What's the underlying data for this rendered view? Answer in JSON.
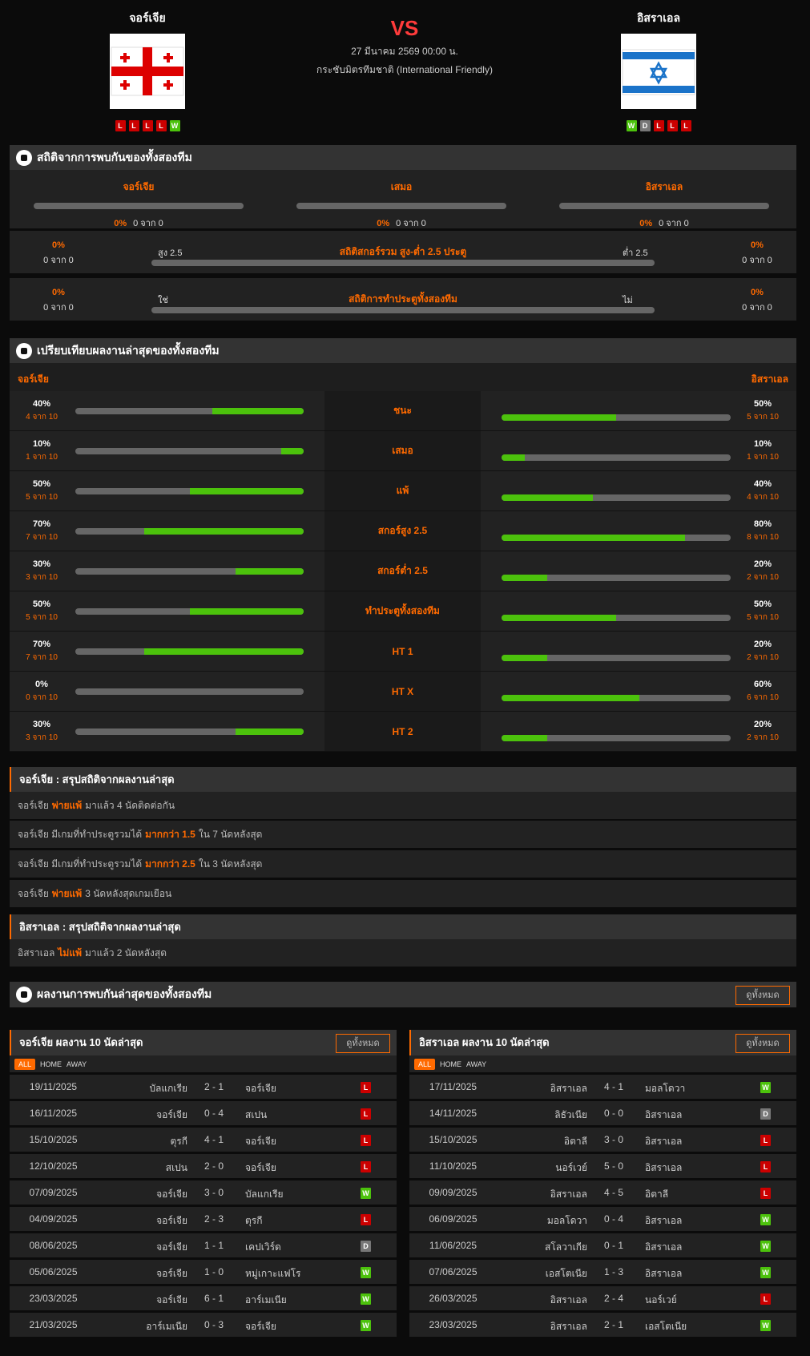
{
  "header": {
    "home": {
      "name": "จอร์เจีย",
      "form": [
        "L",
        "L",
        "L",
        "L",
        "W"
      ]
    },
    "away": {
      "name": "อิสราเอล",
      "form": [
        "W",
        "D",
        "L",
        "L",
        "L"
      ]
    },
    "vs": "VS",
    "date": "27 มีนาคม 2569 00:00 น.",
    "competition": "กระชับมิตรทีมชาติ (International Friendly)"
  },
  "h2h_stats": {
    "title": "สถิติจากการพบกันของทั้งสองทีม",
    "cols": [
      {
        "label": "จอร์เจีย",
        "pct": "0%",
        "count": "0 จาก 0"
      },
      {
        "label": "เสมอ",
        "pct": "0%",
        "count": "0 จาก 0"
      },
      {
        "label": "อิสราเอล",
        "pct": "0%",
        "count": "0 จาก 0"
      }
    ],
    "rows": [
      {
        "title": "สถิติสกอร์รวม สูง-ต่ำ 2.5 ประตู",
        "left_label": "สูง 2.5",
        "right_label": "ต่ำ 2.5",
        "left_pct": "0%",
        "left_count": "0 จาก 0",
        "right_pct": "0%",
        "right_count": "0 จาก 0"
      },
      {
        "title": "สถิติการทำประตูทั้งสองทีม",
        "left_label": "ใช่",
        "right_label": "ไม่",
        "left_pct": "0%",
        "left_count": "0 จาก 0",
        "right_pct": "0%",
        "right_count": "0 จาก 0"
      }
    ]
  },
  "compare": {
    "title": "เปรียบเทียบผลงานล่าสุดของทั้งสองทีม",
    "home": "จอร์เจีย",
    "away": "อิสราเอล",
    "rows": [
      {
        "label": "ชนะ",
        "h": 40,
        "hp": "40%",
        "hc": "4 จาก 10",
        "a": 50,
        "ap": "50%",
        "ac": "5 จาก 10"
      },
      {
        "label": "เสมอ",
        "h": 10,
        "hp": "10%",
        "hc": "1 จาก 10",
        "a": 10,
        "ap": "10%",
        "ac": "1 จาก 10"
      },
      {
        "label": "แพ้",
        "h": 50,
        "hp": "50%",
        "hc": "5 จาก 10",
        "a": 40,
        "ap": "40%",
        "ac": "4 จาก 10"
      },
      {
        "label": "สกอร์สูง 2.5",
        "h": 70,
        "hp": "70%",
        "hc": "7 จาก 10",
        "a": 80,
        "ap": "80%",
        "ac": "8 จาก 10"
      },
      {
        "label": "สกอร์ต่ำ 2.5",
        "h": 30,
        "hp": "30%",
        "hc": "3 จาก 10",
        "a": 20,
        "ap": "20%",
        "ac": "2 จาก 10"
      },
      {
        "label": "ทำประตูทั้งสองทีม",
        "h": 50,
        "hp": "50%",
        "hc": "5 จาก 10",
        "a": 50,
        "ap": "50%",
        "ac": "5 จาก 10"
      },
      {
        "label": "HT 1",
        "h": 70,
        "hp": "70%",
        "hc": "7 จาก 10",
        "a": 20,
        "ap": "20%",
        "ac": "2 จาก 10"
      },
      {
        "label": "HT X",
        "h": 0,
        "hp": "0%",
        "hc": "0 จาก 10",
        "a": 60,
        "ap": "60%",
        "ac": "6 จาก 10"
      },
      {
        "label": "HT 2",
        "h": 30,
        "hp": "30%",
        "hc": "3 จาก 10",
        "a": 20,
        "ap": "20%",
        "ac": "2 จาก 10"
      }
    ]
  },
  "summary_home": {
    "title": "จอร์เจีย : สรุปสถิติจากผลงานล่าสุด",
    "items": [
      {
        "pre": "จอร์เจีย",
        "hl": "พ่ายแพ้",
        "post": "มาแล้ว 4 นัดติดต่อกัน"
      },
      {
        "pre": "จอร์เจีย  มีเกมที่ทำประตูรวมได้",
        "hl": "มากกว่า  1.5",
        "post": "ใน 7 นัดหลังสุด"
      },
      {
        "pre": "จอร์เจีย  มีเกมที่ทำประตูรวมได้",
        "hl": "มากกว่า  2.5",
        "post": "ใน 3 นัดหลังสุด"
      },
      {
        "pre": "จอร์เจีย",
        "hl": "พ่ายแพ้",
        "post": "3  นัดหลังสุดเกมเยือน"
      }
    ]
  },
  "summary_away": {
    "title": "อิสราเอล : สรุปสถิติจากผลงานล่าสุด",
    "items": [
      {
        "pre": "อิสราเอล",
        "hl": "ไม่แพ้",
        "post": "มาแล้ว 2 นัดหลังสุด"
      }
    ]
  },
  "h2h_results": {
    "title": "ผลงานการพบกันล่าสุดของทั้งสองทีม",
    "view_all": "ดูทั้งหมด"
  },
  "last10": [
    {
      "title": "จอร์เจีย ผลงาน 10 นัดล่าสุด",
      "view_all": "ดูทั้งหมด",
      "filters": [
        "ALL",
        "HOME",
        "AWAY"
      ],
      "matches": [
        [
          "19/11/2025",
          "บัลแกเรีย",
          "2 - 1",
          "จอร์เจีย",
          "L"
        ],
        [
          "16/11/2025",
          "จอร์เจีย",
          "0 - 4",
          "สเปน",
          "L"
        ],
        [
          "15/10/2025",
          "ตุรกี",
          "4 - 1",
          "จอร์เจีย",
          "L"
        ],
        [
          "12/10/2025",
          "สเปน",
          "2 - 0",
          "จอร์เจีย",
          "L"
        ],
        [
          "07/09/2025",
          "จอร์เจีย",
          "3 - 0",
          "บัลแกเรีย",
          "W"
        ],
        [
          "04/09/2025",
          "จอร์เจีย",
          "2 - 3",
          "ตุรกี",
          "L"
        ],
        [
          "08/06/2025",
          "จอร์เจีย",
          "1 - 1",
          "เคปเวิร์ด",
          "D"
        ],
        [
          "05/06/2025",
          "จอร์เจีย",
          "1 - 0",
          "หมู่เกาะแฟโร",
          "W"
        ],
        [
          "23/03/2025",
          "จอร์เจีย",
          "6 - 1",
          "อาร์เมเนีย",
          "W"
        ],
        [
          "21/03/2025",
          "อาร์เมเนีย",
          "0 - 3",
          "จอร์เจีย",
          "W"
        ]
      ]
    },
    {
      "title": "อิสราเอล ผลงาน 10 นัดล่าสุด",
      "view_all": "ดูทั้งหมด",
      "filters": [
        "ALL",
        "HOME",
        "AWAY"
      ],
      "matches": [
        [
          "17/11/2025",
          "อิสราเอล",
          "4 - 1",
          "มอลโดวา",
          "W"
        ],
        [
          "14/11/2025",
          "ลิธัวเนีย",
          "0 - 0",
          "อิสราเอล",
          "D"
        ],
        [
          "15/10/2025",
          "อิตาลี",
          "3 - 0",
          "อิสราเอล",
          "L"
        ],
        [
          "11/10/2025",
          "นอร์เวย์",
          "5 - 0",
          "อิสราเอล",
          "L"
        ],
        [
          "09/09/2025",
          "อิสราเอล",
          "4 - 5",
          "อิตาลี",
          "L"
        ],
        [
          "06/09/2025",
          "มอลโดวา",
          "0 - 4",
          "อิสราเอล",
          "W"
        ],
        [
          "11/06/2025",
          "สโลวาเกีย",
          "0 - 1",
          "อิสราเอล",
          "W"
        ],
        [
          "07/06/2025",
          "เอสโตเนีย",
          "1 - 3",
          "อิสราเอล",
          "W"
        ],
        [
          "26/03/2025",
          "อิสราเอล",
          "2 - 4",
          "นอร์เวย์",
          "L"
        ],
        [
          "23/03/2025",
          "อิสราเอล",
          "2 - 1",
          "เอสโตเนีย",
          "W"
        ]
      ]
    }
  ],
  "colors": {
    "accent": "#ff6a00",
    "win": "#4cc20c",
    "loss": "#cc0000",
    "draw": "#777777",
    "vs": "#ff3b3b"
  }
}
